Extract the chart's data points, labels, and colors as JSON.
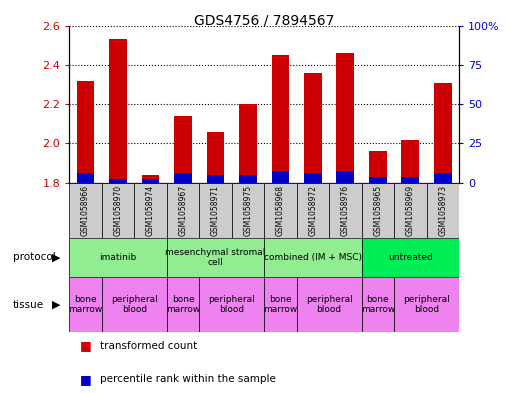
{
  "title": "GDS4756 / 7894567",
  "samples": [
    "GSM1058966",
    "GSM1058970",
    "GSM1058974",
    "GSM1058967",
    "GSM1058971",
    "GSM1058975",
    "GSM1058968",
    "GSM1058972",
    "GSM1058976",
    "GSM1058965",
    "GSM1058969",
    "GSM1058973"
  ],
  "red_values": [
    2.32,
    2.53,
    1.84,
    2.14,
    2.06,
    2.2,
    2.45,
    2.36,
    2.46,
    1.96,
    2.02,
    2.31
  ],
  "blue_values": [
    0.05,
    0.02,
    0.02,
    0.05,
    0.04,
    0.04,
    0.06,
    0.05,
    0.06,
    0.03,
    0.03,
    0.05
  ],
  "y_min": 1.8,
  "y_max": 2.6,
  "y_ticks": [
    1.8,
    2.0,
    2.2,
    2.4,
    2.6
  ],
  "y2_ticks": [
    0,
    25,
    50,
    75,
    100
  ],
  "protocols": [
    {
      "label": "imatinib",
      "start": 0,
      "end": 3
    },
    {
      "label": "mesenchymal stromal\ncell",
      "start": 3,
      "end": 6
    },
    {
      "label": "combined (IM + MSC)",
      "start": 6,
      "end": 9
    },
    {
      "label": "untreated",
      "start": 9,
      "end": 12
    }
  ],
  "protocol_colors": [
    "#90ee90",
    "#90ee90",
    "#90ee90",
    "#00ee55"
  ],
  "tissues": [
    {
      "label": "bone\nmarrow",
      "start": 0,
      "end": 1
    },
    {
      "label": "peripheral\nblood",
      "start": 1,
      "end": 3
    },
    {
      "label": "bone\nmarrow",
      "start": 3,
      "end": 4
    },
    {
      "label": "peripheral\nblood",
      "start": 4,
      "end": 6
    },
    {
      "label": "bone\nmarrow",
      "start": 6,
      "end": 7
    },
    {
      "label": "peripheral\nblood",
      "start": 7,
      "end": 9
    },
    {
      "label": "bone\nmarrow",
      "start": 9,
      "end": 10
    },
    {
      "label": "peripheral\nblood",
      "start": 10,
      "end": 12
    }
  ],
  "tissue_color": "#ee82ee",
  "bar_color_red": "#cc0000",
  "bar_color_blue": "#0000cc",
  "bar_width": 0.55,
  "tick_color_left": "#cc0000",
  "tick_color_right": "#0000cc",
  "sample_box_color": "#cccccc"
}
